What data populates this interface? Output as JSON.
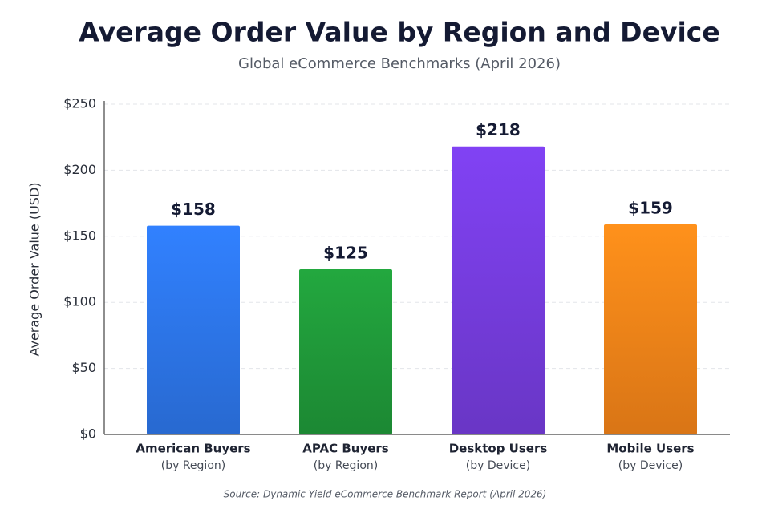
{
  "chart_data": {
    "type": "bar",
    "title": "Average Order Value by Region and Device",
    "subtitle": "Global eCommerce Benchmarks (April 2026)",
    "y_label": "Average Order Value (USD)",
    "source": "Source: Dynamic Yield eCommerce Benchmark Report (April 2026)",
    "categories": [
      "American Buyers",
      "APAC Buyers",
      "Desktop Users",
      "Mobile Users"
    ],
    "category_groups": [
      "(by Region)",
      "(by Region)",
      "(by Device)",
      "(by Device)"
    ],
    "values": [
      158,
      125,
      218,
      159
    ],
    "value_labels": [
      "$158",
      "$125",
      "$218",
      "$159"
    ],
    "colors": [
      "#2f7bf5",
      "#21a03c",
      "#7b3fe8",
      "#ff8a1a"
    ],
    "ylim": [
      0,
      250
    ],
    "yticks": [
      {
        "value": 0,
        "label": "$0"
      },
      {
        "value": 50,
        "label": "$50"
      },
      {
        "value": 100,
        "label": "$100"
      },
      {
        "value": 150,
        "label": "$150"
      },
      {
        "value": 200,
        "label": "$200"
      },
      {
        "value": 250,
        "label": "$250"
      }
    ],
    "grid": true
  }
}
